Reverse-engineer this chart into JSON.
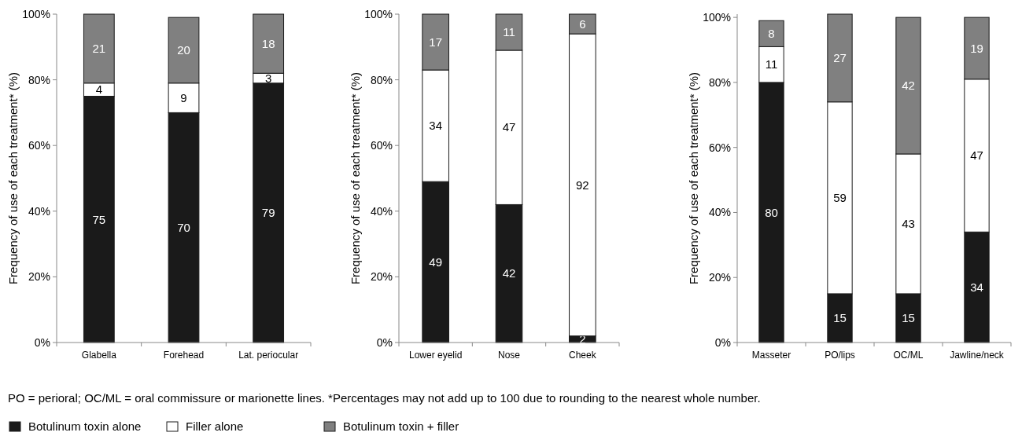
{
  "chart_data": [
    {
      "type": "bar",
      "stacked": true,
      "data_labels": true,
      "ylabel": "Frequency of use of each treatment* (%)",
      "categories": [
        "Glabella",
        "Forehead",
        "Lat. periocular"
      ],
      "ylim": [
        0,
        100
      ],
      "yticks": [
        {
          "value": 0,
          "label": "0%"
        },
        {
          "value": 20,
          "label": "20%"
        },
        {
          "value": 40,
          "label": "40%"
        },
        {
          "value": 60,
          "label": "60%"
        },
        {
          "value": 80,
          "label": "80%"
        },
        {
          "value": 100,
          "label": "100%"
        }
      ],
      "legend": "bottom",
      "annotations": [
        "PO = perioral; OC/ML = oral commissure or marionette lines. *Percentages may not add up to 100 due to rounding to the nearest whole number."
      ],
      "series": [
        {
          "name": "Botulinum toxin alone",
          "color": "#1a1a1a",
          "values": [
            75,
            70,
            79
          ]
        },
        {
          "name": "Filler alone",
          "color": "#ffffff",
          "values": [
            4,
            9,
            3
          ]
        },
        {
          "name": "Botulinum toxin + filler",
          "color": "#808080",
          "values": [
            21,
            20,
            18
          ]
        }
      ]
    },
    {
      "type": "bar",
      "stacked": true,
      "data_labels": true,
      "ylabel": "Frequency of use of each treatment* (%)",
      "categories": [
        "Lower eyelid",
        "Nose",
        "Cheek"
      ],
      "ylim": [
        0,
        100
      ],
      "yticks": [
        {
          "value": 0,
          "label": "0%"
        },
        {
          "value": 20,
          "label": "20%"
        },
        {
          "value": 40,
          "label": "40%"
        },
        {
          "value": 60,
          "label": "60%"
        },
        {
          "value": 80,
          "label": "80%"
        },
        {
          "value": 100,
          "label": "100%"
        }
      ],
      "series": [
        {
          "color": "#1a1a1a",
          "values": [
            49,
            42,
            2
          ]
        },
        {
          "color": "#ffffff",
          "values": [
            34,
            47,
            92
          ]
        },
        {
          "color": "#808080",
          "values": [
            17,
            11,
            6
          ]
        }
      ]
    },
    {
      "type": "bar",
      "stacked": true,
      "data_labels": true,
      "ylabel": "Frequency of use of each treatment* (%)",
      "categories": [
        "Masseter",
        "PO/lips",
        "OC/ML",
        "Jawline/neck"
      ],
      "ylim": [
        0,
        101
      ],
      "yticks": [
        {
          "value": 0,
          "label": "0%"
        },
        {
          "value": 20,
          "label": "20%"
        },
        {
          "value": 40,
          "label": "40%"
        },
        {
          "value": 60,
          "label": "60%"
        },
        {
          "value": 80,
          "label": "80%"
        },
        {
          "value": 100,
          "label": "100%"
        }
      ],
      "series": [
        {
          "color": "#1a1a1a",
          "values": [
            80,
            15,
            15,
            34
          ]
        },
        {
          "color": "#ffffff",
          "values": [
            11,
            59,
            43,
            47
          ]
        },
        {
          "color": "#808080",
          "values": [
            8,
            27,
            42,
            19
          ]
        }
      ]
    }
  ]
}
